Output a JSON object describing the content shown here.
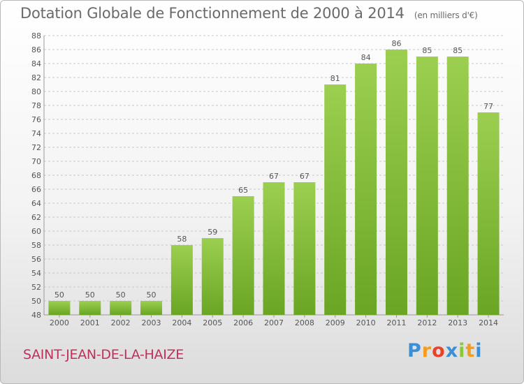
{
  "header": {
    "title": "Dotation Globale de Fonctionnement de 2000 à 2014",
    "unit": "(en milliers d'€)"
  },
  "footer": {
    "commune": "SAINT-JEAN-DE-LA-HAIZE",
    "logo_letters": [
      "P",
      "r",
      "o",
      "x",
      "i",
      "t",
      "i"
    ],
    "logo_colors": [
      "#3a8fd6",
      "#f39c1e",
      "#e8412c",
      "#3a8fd6",
      "#8cc63f",
      "#f39c1e",
      "#3a8fd6"
    ]
  },
  "colors": {
    "bar_top": "#9ccf4f",
    "bar_bottom": "#6aa524",
    "grid": "#c8c8c8",
    "axis_text": "#555555",
    "label_text": "#555555"
  },
  "chart_data": {
    "type": "bar",
    "categories": [
      "2000",
      "2001",
      "2002",
      "2003",
      "2004",
      "2005",
      "2006",
      "2007",
      "2008",
      "2009",
      "2010",
      "2011",
      "2012",
      "2013",
      "2014"
    ],
    "values": [
      50,
      50,
      50,
      50,
      58,
      59,
      65,
      67,
      67,
      81,
      84,
      86,
      85,
      85,
      77
    ],
    "title": "Dotation Globale de Fonctionnement de 2000 à 2014",
    "ylabel": "",
    "xlabel": "",
    "ylim": [
      48,
      88
    ],
    "yticks": [
      48,
      50,
      52,
      54,
      56,
      58,
      60,
      62,
      64,
      66,
      68,
      70,
      72,
      74,
      76,
      78,
      80,
      82,
      84,
      86,
      88
    ],
    "grid": true,
    "data_labels": true
  }
}
